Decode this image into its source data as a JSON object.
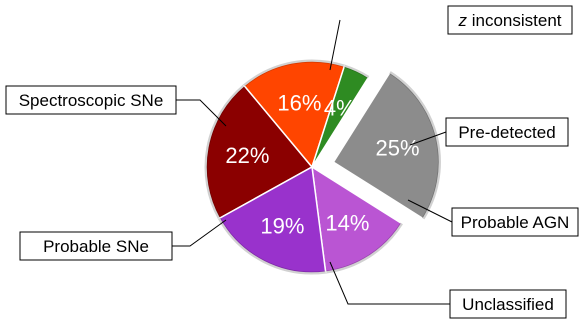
{
  "chart_data": {
    "type": "pie",
    "title": "",
    "slices": [
      {
        "label": "z inconsistent",
        "label_italic_prefix": "z",
        "label_rest": " inconsistent",
        "value": 22,
        "pct_label": "22%",
        "color": "#8b0000",
        "exploded": false
      },
      {
        "label": "Pre-detected",
        "value": 16,
        "pct_label": "16%",
        "color": "#ff4500",
        "exploded": false
      },
      {
        "label": "Probable AGN",
        "value": 4,
        "pct_label": "4%",
        "color": "#2e8b22",
        "exploded": false
      },
      {
        "label": "Unclassified",
        "value": 25,
        "pct_label": "25%",
        "color": "#8c8c8c",
        "exploded": true
      },
      {
        "label": "Probable SNe",
        "value": 14,
        "pct_label": "14%",
        "color": "#ba55d3",
        "exploded": false
      },
      {
        "label": "Spectroscopic SNe",
        "value": 19,
        "pct_label": "19%",
        "color": "#9932cc",
        "exploded": false
      }
    ]
  }
}
